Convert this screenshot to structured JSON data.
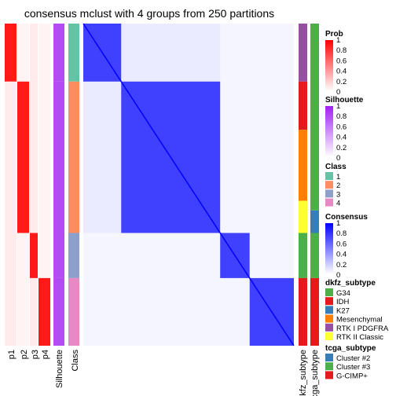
{
  "chart_data": {
    "type": "heatmap",
    "title": "consensus mclust with 4 groups from 250 partitions",
    "left_annotations": [
      "p1",
      "p2",
      "p3",
      "p4",
      "Silhouette",
      "Class"
    ],
    "right_annotations": [
      "dkfz_subtype",
      "tcga_subtype"
    ],
    "class_blocks": [
      {
        "class": "1",
        "fraction": 0.18
      },
      {
        "class": "2",
        "fraction": 0.47
      },
      {
        "class": "3",
        "fraction": 0.14
      },
      {
        "class": "4",
        "fraction": 0.21
      }
    ],
    "legends": [
      {
        "title": "Prob",
        "type": "continuous",
        "ticks": [
          "1",
          "0.8",
          "0.6",
          "0.4",
          "0.2",
          "0"
        ],
        "low_color": "#ffffff",
        "high_color": "#ff0000"
      },
      {
        "title": "Silhouette",
        "type": "continuous",
        "ticks": [
          "1",
          "0.8",
          "0.6",
          "0.4",
          "0.2",
          "0"
        ],
        "low_color": "#ffffff",
        "high_color": "#a020f0"
      },
      {
        "title": "Class",
        "type": "discrete",
        "items": [
          {
            "label": "1",
            "color": "#66c2a5"
          },
          {
            "label": "2",
            "color": "#fc8d62"
          },
          {
            "label": "3",
            "color": "#8da0cb"
          },
          {
            "label": "4",
            "color": "#e78ac3"
          }
        ]
      },
      {
        "title": "Consensus",
        "type": "continuous",
        "ticks": [
          "1",
          "0.8",
          "0.6",
          "0.4",
          "0.2",
          "0"
        ],
        "low_color": "#ffffff",
        "high_color": "#0000ff"
      },
      {
        "title": "dkfz_subtype",
        "type": "discrete",
        "items": [
          {
            "label": "G34",
            "color": "#4daf4a"
          },
          {
            "label": "IDH",
            "color": "#e41a1c"
          },
          {
            "label": "K27",
            "color": "#377eb8"
          },
          {
            "label": "Mesenchymal",
            "color": "#ff7f00"
          },
          {
            "label": "RTK I PDGFRA",
            "color": "#984ea3"
          },
          {
            "label": "RTK II Classic",
            "color": "#ffff33"
          }
        ]
      },
      {
        "title": "tcga_subtype",
        "type": "discrete",
        "items": [
          {
            "label": "Cluster #2",
            "color": "#377eb8"
          },
          {
            "label": "Cluster #3",
            "color": "#4daf4a"
          },
          {
            "label": "G-CIMP+",
            "color": "#e41a1c"
          }
        ]
      }
    ]
  }
}
